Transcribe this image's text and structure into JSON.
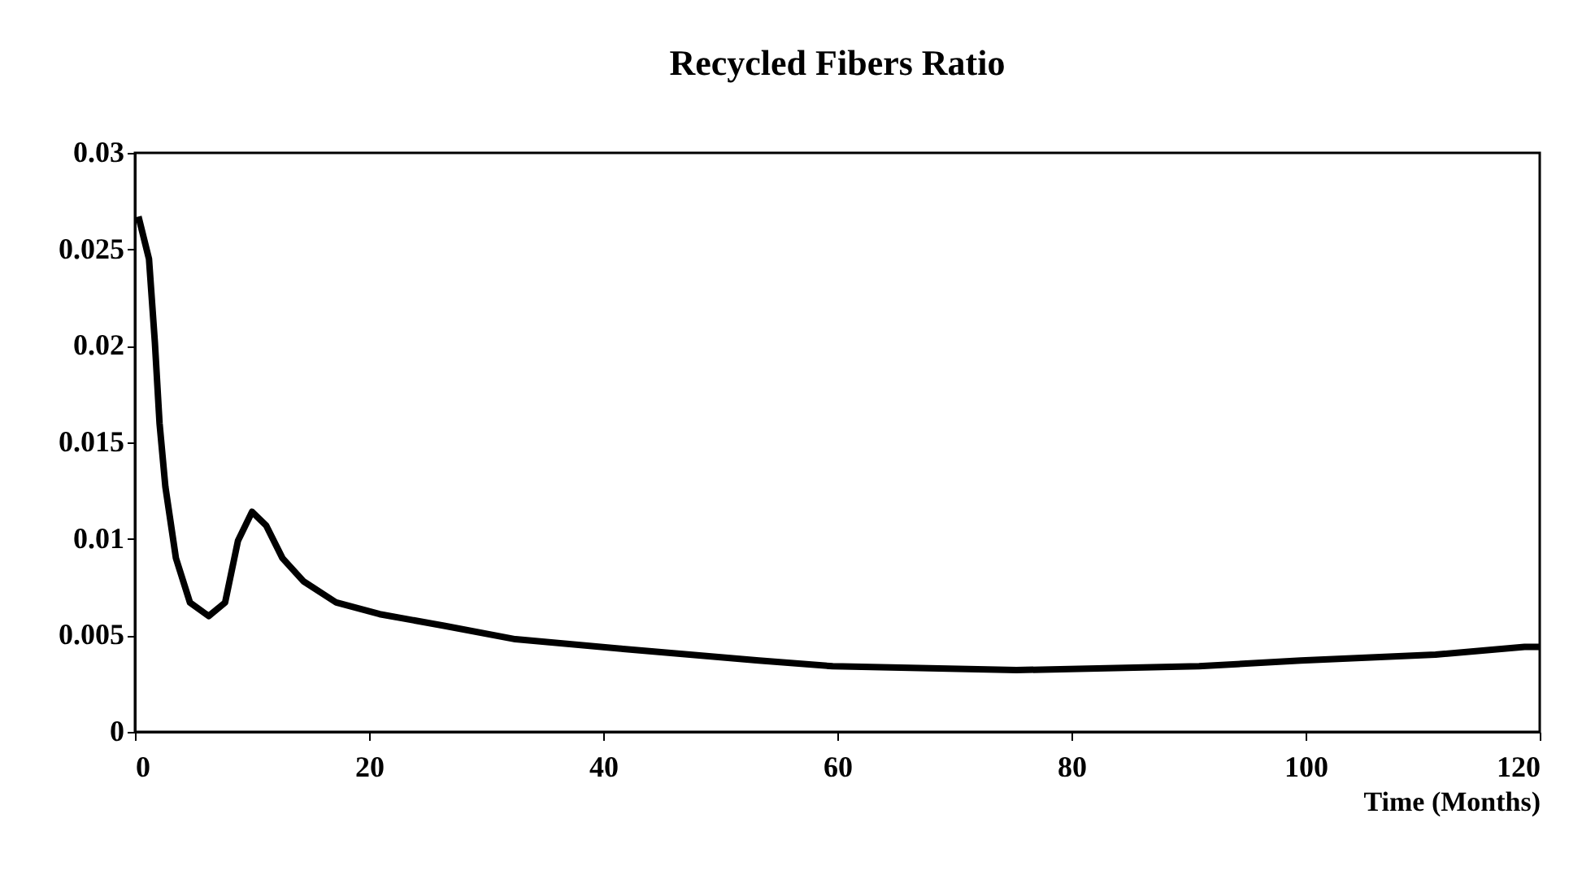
{
  "chart_data": {
    "type": "line",
    "title": "Recycled Fibers Ratio",
    "xlabel": "Time (Months)",
    "x": [
      0.3,
      1.2,
      1.7,
      2.1,
      2.6,
      3.5,
      4.7,
      6.3,
      7.7,
      8.8,
      10,
      11.2,
      12.6,
      14.4,
      17.2,
      20.9,
      26.4,
      32.5,
      41.7,
      53.3,
      59.6,
      75.3,
      90.9,
      99.6,
      111.1,
      118.7,
      120
    ],
    "series": [
      {
        "color": "#000000",
        "values": [
          0.0267,
          0.0245,
          0.0202,
          0.016,
          0.0127,
          0.009,
          0.0067,
          0.006,
          0.0067,
          0.0099,
          0.0114,
          0.0107,
          0.009,
          0.0078,
          0.0067,
          0.0061,
          0.0055,
          0.0048,
          0.0043,
          0.0037,
          0.0034,
          0.0032,
          0.0034,
          0.0037,
          0.004,
          0.0044,
          0.0044
        ]
      }
    ],
    "xlim": [
      0,
      120
    ],
    "xticks": [
      0,
      20,
      40,
      60,
      80,
      100,
      120
    ],
    "ylim": [
      0,
      0.03
    ],
    "yticks": [
      0,
      0.005,
      0.01,
      0.015,
      0.02,
      0.025,
      0.03
    ],
    "grid": false,
    "marker": "none",
    "line_style": "solid"
  }
}
